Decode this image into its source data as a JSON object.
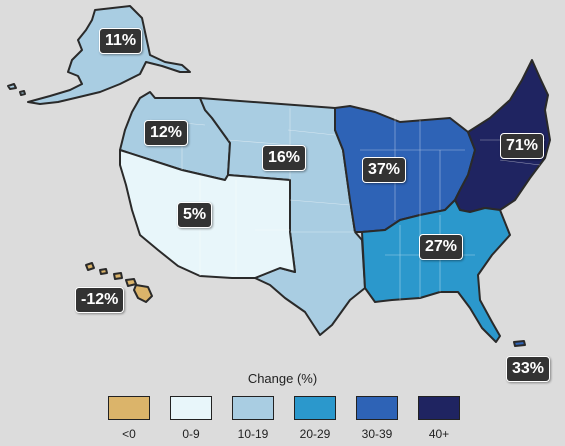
{
  "colors": {
    "negative": "#dbb46a",
    "c0_9": "#e8f6fa",
    "c10_19": "#a9cde2",
    "c20_29": "#2b98cc",
    "c30_39": "#2e63b6",
    "c40_plus": "#1f2461",
    "background": "#dcdcdc"
  },
  "regions": {
    "alaska": {
      "label": "11%"
    },
    "northwest": {
      "label": "12%"
    },
    "great_plains": {
      "label": "16%"
    },
    "southwest": {
      "label": "5%"
    },
    "midwest": {
      "label": "37%"
    },
    "northeast": {
      "label": "71%"
    },
    "southeast": {
      "label": "27%"
    },
    "hawaii": {
      "label": "-12%"
    },
    "puerto_rico": {
      "label": "33%"
    }
  },
  "legend": {
    "title": "Change (%)",
    "items": [
      {
        "label": "<0"
      },
      {
        "label": "0-9"
      },
      {
        "label": "10-19"
      },
      {
        "label": "20-29"
      },
      {
        "label": "30-39"
      },
      {
        "label": "40+"
      }
    ]
  }
}
